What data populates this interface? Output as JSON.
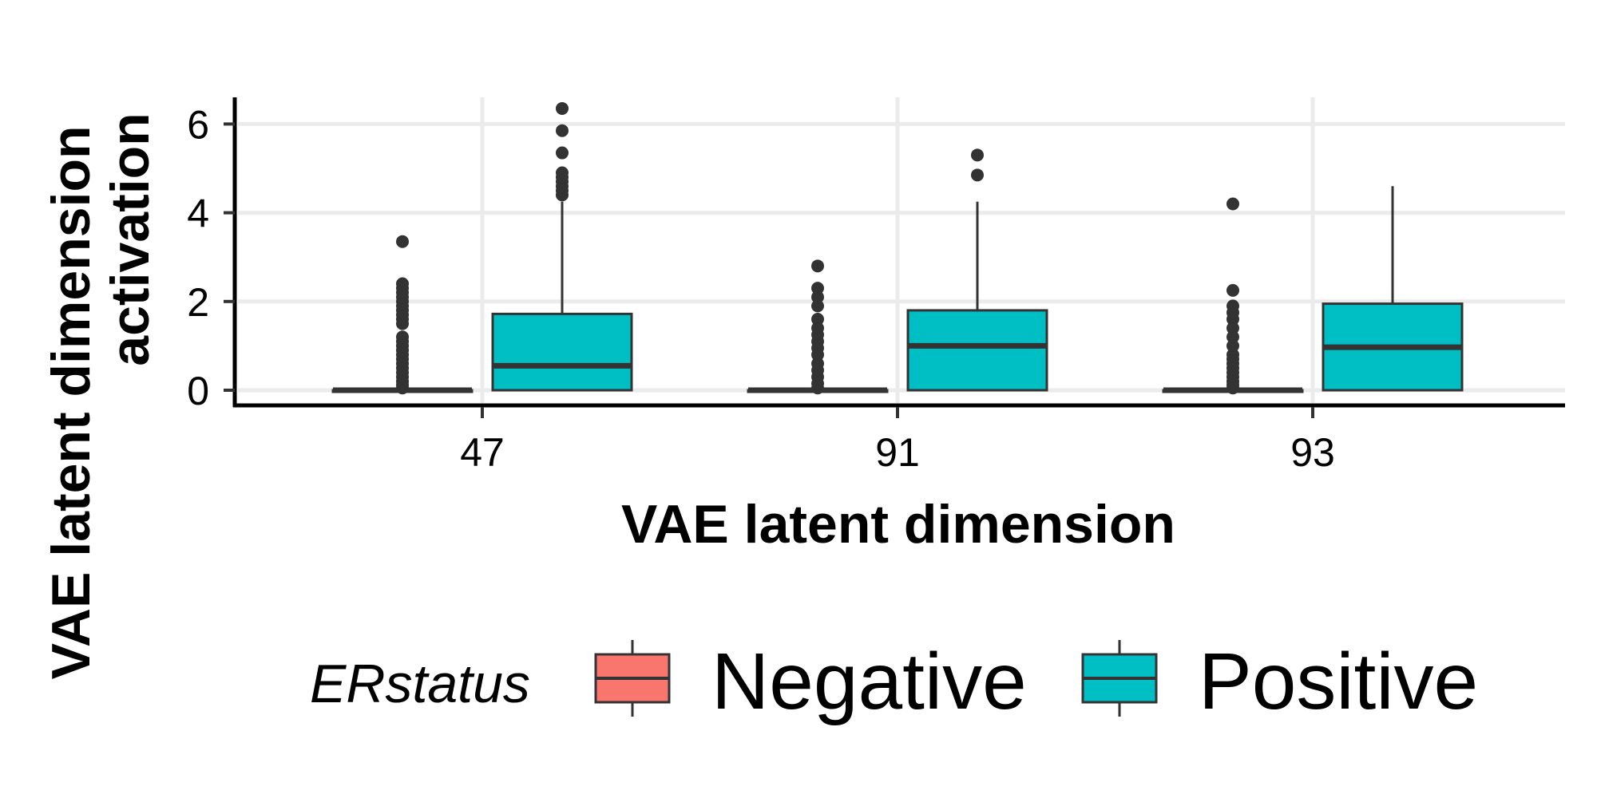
{
  "chart_data": {
    "type": "boxplot",
    "title": "",
    "xlabel": "VAE latent dimension",
    "ylabel_lines": [
      "VAE latent dimension",
      "activation"
    ],
    "ylim": [
      -0.3,
      6.7
    ],
    "yticks": [
      0,
      2,
      4,
      6
    ],
    "categories": [
      "47",
      "91",
      "93"
    ],
    "legend": {
      "title": "ERstatus",
      "position": "bottom"
    },
    "series": [
      {
        "name": "Negative",
        "color": "#F8766D",
        "boxes": [
          {
            "min": 0,
            "q1": 0,
            "median": 0,
            "q3": 0,
            "max": 0,
            "outliers": [
              0.05,
              0.12,
              0.2,
              0.3,
              0.4,
              0.5,
              0.6,
              0.7,
              0.8,
              0.9,
              1.0,
              1.1,
              1.2,
              1.5,
              1.6,
              1.7,
              1.8,
              1.9,
              2.0,
              2.1,
              2.2,
              2.3,
              2.4,
              3.35
            ]
          },
          {
            "min": 0,
            "q1": 0,
            "median": 0,
            "q3": 0,
            "max": 0,
            "outliers": [
              0.05,
              0.15,
              0.3,
              0.45,
              0.6,
              0.8,
              0.95,
              1.1,
              1.25,
              1.4,
              1.6,
              1.9,
              2.1,
              2.3,
              2.8
            ]
          },
          {
            "min": 0,
            "q1": 0,
            "median": 0,
            "q3": 0,
            "max": 0,
            "outliers": [
              0.05,
              0.12,
              0.2,
              0.3,
              0.4,
              0.5,
              0.6,
              0.7,
              0.8,
              1.0,
              1.2,
              1.4,
              1.6,
              1.75,
              1.9,
              2.25,
              4.2
            ]
          }
        ]
      },
      {
        "name": "Positive",
        "color": "#00BFC4",
        "boxes": [
          {
            "min": 0,
            "q1": 0,
            "median": 0.55,
            "q3": 1.72,
            "max": 4.25,
            "outliers": [
              4.4,
              4.5,
              4.6,
              4.7,
              4.8,
              4.9,
              5.35,
              5.85,
              6.35
            ]
          },
          {
            "min": 0,
            "q1": 0,
            "median": 1.0,
            "q3": 1.8,
            "max": 4.25,
            "outliers": [
              4.85,
              5.3
            ]
          },
          {
            "min": 0,
            "q1": 0,
            "median": 0.97,
            "q3": 1.95,
            "max": 4.6,
            "outliers": []
          }
        ]
      }
    ]
  }
}
